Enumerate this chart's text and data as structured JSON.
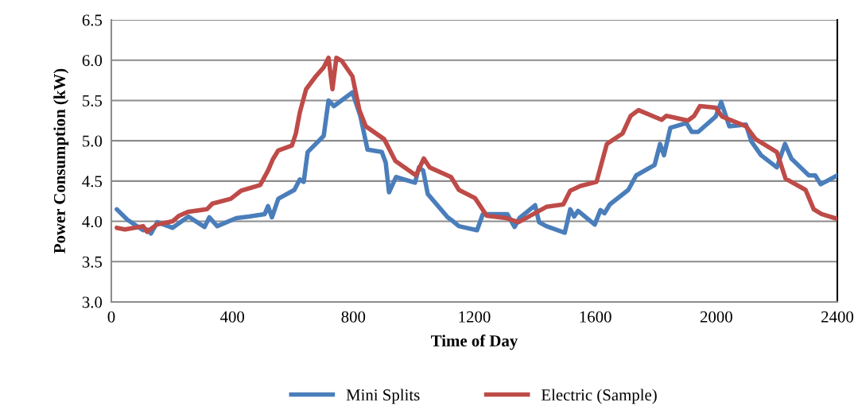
{
  "chart_data": {
    "type": "line",
    "xlabel": "Time of Day",
    "ylabel": "Power Consumption (kW)",
    "xlim": [
      0,
      2400
    ],
    "xticks": [
      0,
      400,
      800,
      1200,
      1600,
      2000,
      2400
    ],
    "ylim": [
      3.0,
      6.5
    ],
    "yticks": [
      {
        "value": 3.0,
        "label": "3.0"
      },
      {
        "value": 3.5,
        "label": "3.5"
      },
      {
        "value": 4.0,
        "label": "4.0"
      },
      {
        "value": 4.5,
        "label": "4.5"
      },
      {
        "value": 5.0,
        "label": "5.0"
      },
      {
        "value": 5.5,
        "label": "5.5"
      },
      {
        "value": 6.0,
        "label": "6.0"
      },
      {
        "value": 6.5,
        "label": "6.5"
      }
    ],
    "grid": "y",
    "legend": "bottom",
    "marker": "none",
    "line_style": "solid",
    "series": [
      {
        "name": "Mini Splits",
        "color": "#4a7ebb",
        "x": [
          18,
          53,
          105,
          118,
          131,
          152,
          202,
          255,
          308,
          324,
          350,
          413,
          455,
          507,
          518,
          531,
          552,
          605,
          623,
          636,
          649,
          702,
          718,
          736,
          797,
          823,
          847,
          894,
          907,
          918,
          941,
          1004,
          1017,
          1031,
          1046,
          1112,
          1130,
          1149,
          1209,
          1228,
          1309,
          1333,
          1349,
          1401,
          1414,
          1438,
          1499,
          1517,
          1530,
          1543,
          1598,
          1617,
          1630,
          1648,
          1709,
          1735,
          1796,
          1814,
          1827,
          1848,
          1901,
          1919,
          1940,
          1998,
          2016,
          2043,
          2098,
          2116,
          2148,
          2200,
          2227,
          2248,
          2306,
          2327,
          2345,
          2400
        ],
        "values": [
          4.15,
          4.02,
          3.89,
          3.9,
          3.85,
          3.99,
          3.92,
          4.06,
          3.93,
          4.05,
          3.94,
          4.04,
          4.06,
          4.09,
          4.19,
          4.05,
          4.28,
          4.39,
          4.52,
          4.49,
          4.86,
          5.06,
          5.5,
          5.43,
          5.6,
          5.31,
          4.89,
          4.86,
          4.73,
          4.36,
          4.55,
          4.48,
          4.67,
          4.63,
          4.34,
          4.05,
          4.0,
          3.94,
          3.89,
          4.09,
          4.09,
          3.93,
          4.04,
          4.2,
          3.99,
          3.94,
          3.86,
          4.15,
          4.06,
          4.13,
          3.96,
          4.14,
          4.1,
          4.21,
          4.39,
          4.57,
          4.7,
          4.96,
          4.82,
          5.16,
          5.22,
          5.11,
          5.11,
          5.3,
          5.48,
          5.18,
          5.2,
          4.99,
          4.82,
          4.67,
          4.96,
          4.78,
          4.57,
          4.57,
          4.46,
          4.57
        ]
      },
      {
        "name": "Electric (Sample)",
        "color": "#be4b48",
        "x": [
          18,
          45,
          105,
          118,
          150,
          202,
          224,
          255,
          316,
          334,
          395,
          429,
          492,
          518,
          534,
          552,
          597,
          610,
          623,
          644,
          676,
          702,
          718,
          731,
          744,
          762,
          797,
          820,
          841,
          902,
          939,
          1007,
          1033,
          1052,
          1123,
          1149,
          1202,
          1241,
          1307,
          1346,
          1438,
          1494,
          1517,
          1551,
          1604,
          1638,
          1690,
          1717,
          1743,
          1819,
          1835,
          1906,
          1927,
          1946,
          1998,
          2019,
          2098,
          2130,
          2200,
          2229,
          2295,
          2322,
          2348,
          2400
        ],
        "values": [
          3.92,
          3.9,
          3.94,
          3.87,
          3.96,
          4.0,
          4.07,
          4.12,
          4.15,
          4.22,
          4.28,
          4.38,
          4.45,
          4.63,
          4.77,
          4.88,
          4.94,
          5.09,
          5.35,
          5.64,
          5.8,
          5.91,
          6.03,
          5.64,
          6.03,
          5.99,
          5.8,
          5.38,
          5.18,
          5.02,
          4.75,
          4.57,
          4.78,
          4.67,
          4.55,
          4.39,
          4.29,
          4.07,
          4.04,
          3.99,
          4.18,
          4.21,
          4.38,
          4.44,
          4.49,
          4.96,
          5.09,
          5.31,
          5.38,
          5.26,
          5.31,
          5.25,
          5.31,
          5.43,
          5.41,
          5.3,
          5.18,
          5.02,
          4.86,
          4.53,
          4.39,
          4.15,
          4.09,
          4.03
        ]
      }
    ]
  }
}
